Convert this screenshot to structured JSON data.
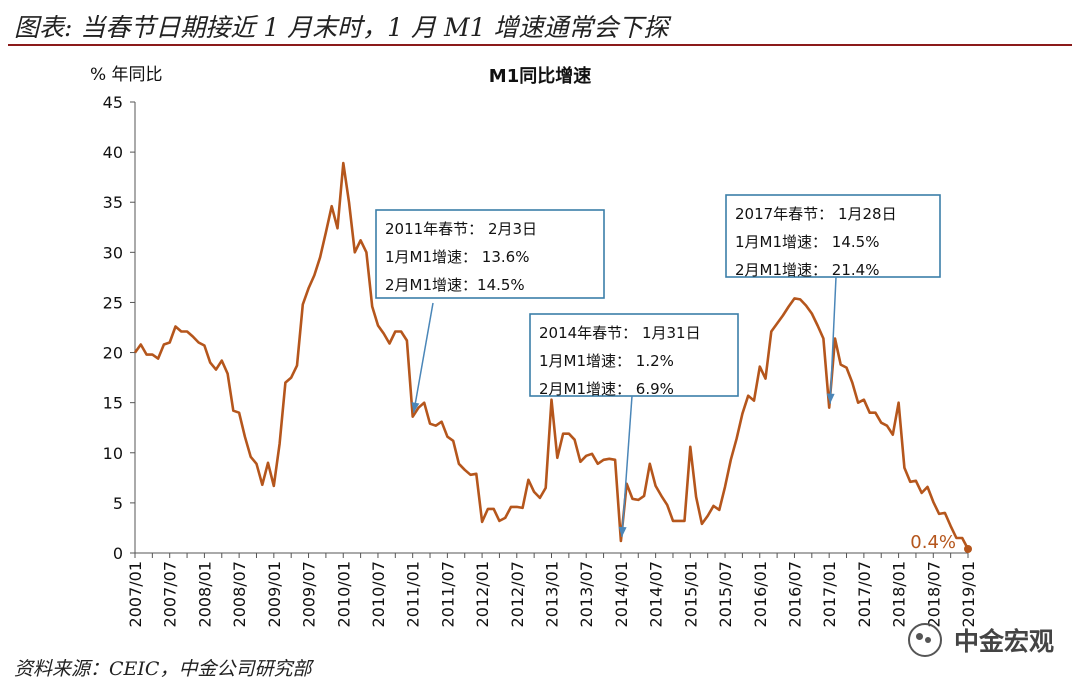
{
  "header": {
    "title": "图表: 当春节日期接近 1 月末时，1 月 M1 增速通常会下探"
  },
  "footer": {
    "source": "资料来源：CEIC，中金公司研究部"
  },
  "watermark": {
    "text": "中金宏观",
    "icon": "wechat-icon"
  },
  "colors": {
    "line": "#b5561c",
    "annotation_border": "#3b7ea8",
    "arrow": "#4a86b8",
    "rule": "#8b1a1a"
  },
  "chart_data": {
    "type": "line",
    "title": "M1同比增速",
    "ylabel": "% 年同比",
    "xlabel": "",
    "ylim": [
      0,
      45
    ],
    "yticks": [
      0,
      5,
      10,
      15,
      20,
      25,
      30,
      35,
      40,
      45
    ],
    "xlim": [
      0,
      144
    ],
    "xtick_labels": [
      "2007/01",
      "2007/07",
      "2008/01",
      "2008/07",
      "2009/01",
      "2009/07",
      "2010/01",
      "2010/07",
      "2011/01",
      "2011/07",
      "2012/01",
      "2012/07",
      "2013/01",
      "2013/07",
      "2014/01",
      "2014/07",
      "2015/01",
      "2015/07",
      "2016/01",
      "2016/07",
      "2017/01",
      "2017/07",
      "2018/01",
      "2018/07",
      "2019/01"
    ],
    "series": [
      {
        "name": "M1同比",
        "values": [
          20.0,
          20.8,
          19.8,
          19.8,
          19.4,
          20.8,
          21.0,
          22.6,
          22.1,
          22.1,
          21.6,
          21.0,
          20.7,
          19.0,
          18.3,
          19.2,
          17.9,
          14.2,
          14.0,
          11.6,
          9.6,
          8.9,
          6.8,
          9.0,
          6.7,
          10.9,
          17.0,
          17.5,
          18.7,
          24.8,
          26.4,
          27.7,
          29.5,
          32.0,
          34.6,
          32.4,
          38.9,
          35.0,
          30.0,
          31.2,
          30.0,
          24.6,
          22.7,
          21.9,
          20.9,
          22.1,
          22.1,
          21.2,
          13.6,
          14.5,
          15.0,
          12.9,
          12.7,
          13.1,
          11.6,
          11.2,
          8.9,
          8.3,
          7.8,
          7.9,
          3.1,
          4.4,
          4.4,
          3.2,
          3.5,
          4.6,
          4.6,
          4.5,
          7.3,
          6.1,
          5.5,
          6.5,
          15.3,
          9.5,
          11.9,
          11.9,
          11.3,
          9.1,
          9.7,
          9.9,
          8.9,
          9.3,
          9.4,
          9.3,
          1.2,
          6.9,
          5.4,
          5.3,
          5.7,
          8.9,
          6.7,
          5.7,
          4.8,
          3.2,
          3.2,
          3.2,
          10.6,
          5.6,
          2.9,
          3.7,
          4.7,
          4.3,
          6.6,
          9.3,
          11.4,
          13.9,
          15.7,
          15.2,
          18.6,
          17.4,
          22.1,
          22.9,
          23.7,
          24.6,
          25.4,
          25.3,
          24.7,
          23.9,
          22.7,
          21.4,
          14.5,
          21.4,
          18.8,
          18.5,
          17.0,
          15.0,
          15.3,
          14.0,
          14.0,
          13.0,
          12.7,
          11.8,
          15.0,
          8.5,
          7.1,
          7.2,
          6.0,
          6.6,
          5.1,
          3.9,
          4.0,
          2.7,
          1.5,
          1.5,
          0.4
        ]
      }
    ],
    "end_label": "0.4%",
    "annotations": [
      {
        "lines": [
          "2011年春节： 2月3日",
          "1月M1增速： 13.6%",
          "2月M1增速：14.5%"
        ],
        "target_index": 48
      },
      {
        "lines": [
          "2014年春节： 1月31日",
          "1月M1增速： 1.2%",
          "2月M1增速： 6.9%"
        ],
        "target_index": 84
      },
      {
        "lines": [
          "2017年春节： 1月28日",
          "1月M1增速： 14.5%",
          "2月M1增速： 21.4%"
        ],
        "target_index": 120
      }
    ]
  }
}
